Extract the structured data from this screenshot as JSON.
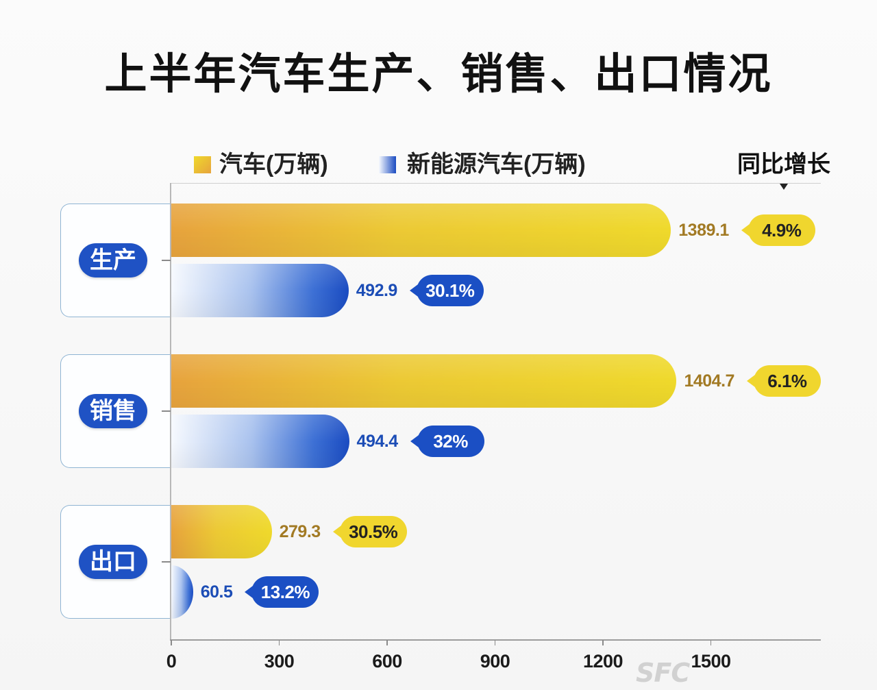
{
  "chart_data": {
    "type": "bar",
    "orientation": "horizontal",
    "title": "上半年汽车生产、销售、出口情况",
    "categories": [
      "生产",
      "销售",
      "出口"
    ],
    "series": [
      {
        "name": "汽车(万辆)",
        "values": [
          1389.1,
          1404.7,
          279.3
        ],
        "growth": [
          "4.9%",
          "6.1%",
          "30.5%"
        ]
      },
      {
        "name": "新能源汽车(万辆)",
        "values": [
          492.9,
          494.4,
          60.5
        ],
        "growth": [
          "30.1%",
          "32%",
          "13.2%"
        ]
      }
    ],
    "growth_label": "同比增长",
    "x_ticks": [
      0,
      300,
      600,
      900,
      1200,
      1500
    ],
    "xlim": [
      0,
      1800
    ],
    "grid": false,
    "legend_position": "top"
  },
  "watermark": {
    "text": "SFC"
  },
  "colors": {
    "vehicle_bar": [
      "#e7a33d",
      "#ecc934",
      "#efd92b"
    ],
    "nev_bar": [
      "#f6f9fe",
      "#a9c2ee",
      "#3d70d5",
      "#1a4bc1"
    ],
    "vehicle_badge": "#f0d62e",
    "nev_badge": "#1b4fc4",
    "vehicle_value_text": "#a27a24",
    "nev_value_text": "#1c4db6",
    "category_pill": "#1f52c4",
    "group_border": "#8fb4d3"
  }
}
